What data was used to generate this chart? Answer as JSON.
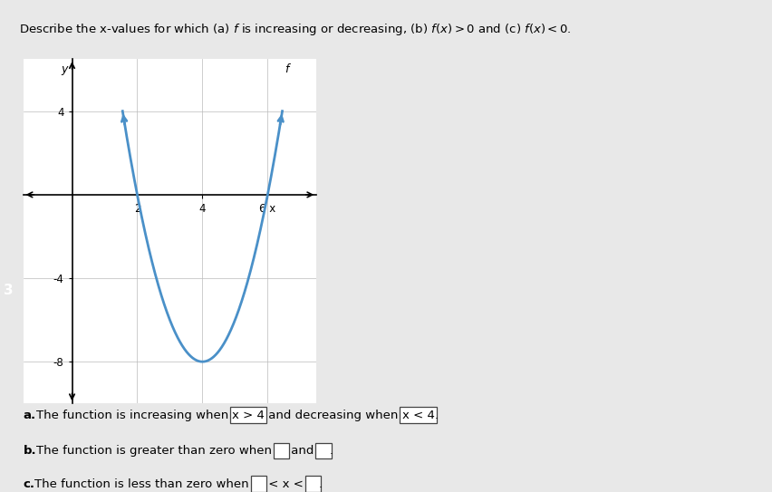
{
  "title": "Describe the x-values for which (a) $f$ is increasing or decreasing, (b) $f(x) > 0$ and (c) $f(x) < 0$.",
  "graph": {
    "xlim": [
      -1.5,
      7.5
    ],
    "ylim": [
      -10,
      6.5
    ],
    "curve_color": "#4a90c8",
    "curve_lw": 2.0,
    "vertex_x": 4,
    "vertex_y": -8,
    "parabola_a": 2.0,
    "x_start": 1.55,
    "x_end": 6.45
  },
  "sidebar_color": "#3a5fa8",
  "background_color": "#e8e8e8",
  "number_label": "3",
  "graph_bg": "#ffffff",
  "grid_color": "#bbbbbb",
  "items": [
    {
      "label": "a.",
      "prefix": "The function is increasing when ",
      "box1": "x > 4",
      "mid": " and decreasing when ",
      "box2": "x < 4",
      "suffix": "."
    },
    {
      "label": "b.",
      "prefix": "The function is greater than zero when ",
      "box1": "   ",
      "mid": " and ",
      "box2": "   ",
      "suffix": "."
    },
    {
      "label": "c.",
      "prefix": "The function is less than zero when ",
      "box1": "   ",
      "mid": " < x < ",
      "box2": "   ",
      "suffix": "."
    }
  ]
}
